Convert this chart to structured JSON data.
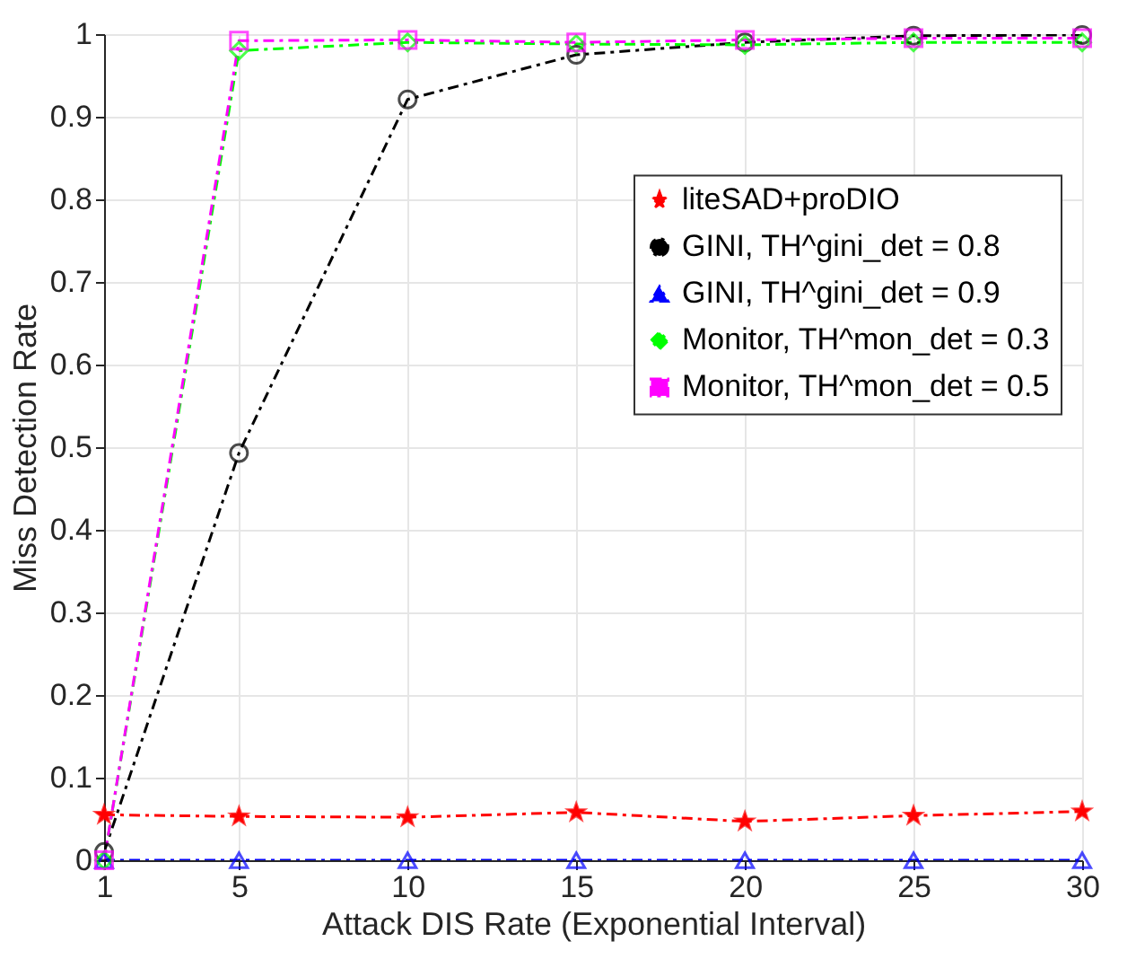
{
  "chart_data": {
    "type": "line",
    "xlabel": "Attack DIS Rate (Exponential Interval)",
    "ylabel": "Miss Detection Rate",
    "x": [
      1,
      5,
      10,
      15,
      20,
      25,
      30
    ],
    "xlim": [
      1,
      30
    ],
    "xticks": [
      1,
      5,
      10,
      15,
      20,
      25,
      30
    ],
    "ylim": [
      0,
      1
    ],
    "yticks": [
      0,
      0.1,
      0.2,
      0.3,
      0.4,
      0.5,
      0.6,
      0.7,
      0.8,
      0.9,
      1
    ],
    "grid": true,
    "legend": "top right",
    "series": [
      {
        "name": "liteSAD+proDIO",
        "color": "#ff0000",
        "marker": "star",
        "line_style": "dashed",
        "values": [
          0.055,
          0.053,
          0.052,
          0.058,
          0.047,
          0.054,
          0.059
        ]
      },
      {
        "name": "GINI, TH^gini_det = 0.8",
        "color": "#000000",
        "marker": "circle",
        "line_style": "dashed",
        "values": [
          0.01,
          0.493,
          0.921,
          0.975,
          0.99,
          0.998,
          0.999
        ]
      },
      {
        "name": "GINI, TH^gini_det = 0.9",
        "color": "#0000ff",
        "marker": "triangle",
        "line_style": "dashed",
        "values": [
          0,
          0,
          0,
          0,
          0,
          0,
          0
        ]
      },
      {
        "name": "Monitor, TH^mon_det = 0.3",
        "color": "#00ff00",
        "marker": "diamond",
        "line_style": "dashed",
        "values": [
          0,
          0.98,
          0.99,
          0.988,
          0.987,
          0.99,
          0.99
        ]
      },
      {
        "name": "Monitor, TH^mon_det = 0.5",
        "color": "#ff00ff",
        "marker": "square",
        "line_style": "dashed",
        "values": [
          0,
          0.992,
          0.993,
          0.99,
          0.993,
          0.995,
          0.995
        ]
      }
    ]
  }
}
